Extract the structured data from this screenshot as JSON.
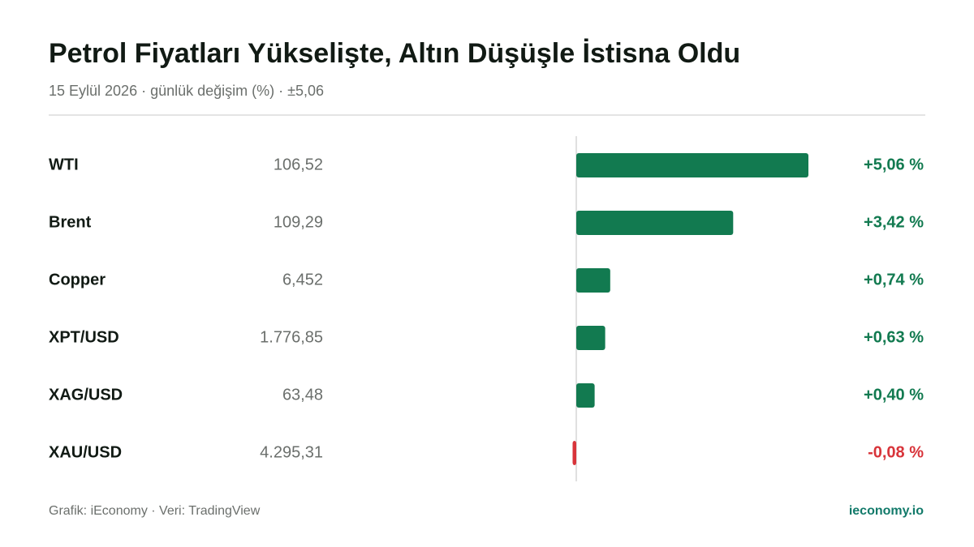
{
  "chart_data": {
    "type": "bar",
    "orientation": "horizontal",
    "title": "Petrol Fiyatları Yükselişte, Altın Düşüşle İstisna Oldu",
    "subtitle": "15 Eylül 2026 · günlük değişim (%) · ±5,06",
    "categories": [
      "WTI",
      "Brent",
      "Copper",
      "XPT/USD",
      "XAG/USD",
      "XAU/USD"
    ],
    "prices": [
      "106,52",
      "109,29",
      "6,452",
      "1.776,85",
      "63,48",
      "4.295,31"
    ],
    "values": [
      5.06,
      3.42,
      0.74,
      0.63,
      0.4,
      -0.08
    ],
    "value_labels": [
      "+5,06 %",
      "+3,42 %",
      "+0,74 %",
      "+0,63 %",
      "+0,40 %",
      "-0,08 %"
    ],
    "xlim": [
      -5.06,
      5.06
    ],
    "color": "#127a50",
    "negative_color": "#d8343a",
    "source": "Grafik: iEconomy · Veri: TradingView",
    "brand": "ieconomy.io"
  }
}
